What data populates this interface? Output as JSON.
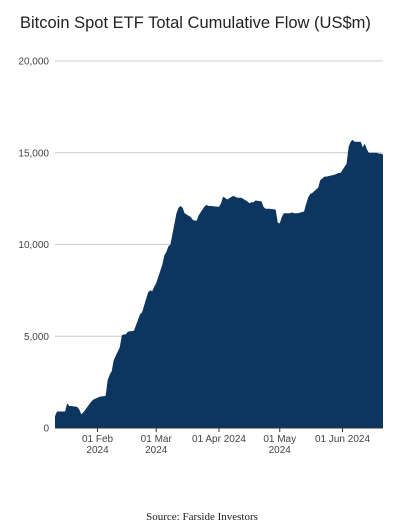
{
  "chart_title": "Bitcoin Spot ETF Total Cumulative Flow (US$m)",
  "source_note": "Source: Farside Investors",
  "colors": {
    "area": "#0c3560",
    "grid": "#cccccc",
    "axis": "#333333"
  },
  "chart_data": {
    "type": "area",
    "title": "Bitcoin Spot ETF Total Cumulative Flow (US$m)",
    "xlabel": "",
    "ylabel": "",
    "ylim": [
      0,
      20000
    ],
    "yticks": [
      "0",
      "5,000",
      "10,000",
      "15,000",
      "20,000"
    ],
    "yticks_values": [
      0,
      5000,
      10000,
      15000,
      20000
    ],
    "xticks": [
      {
        "date": "2024-02-01",
        "line1": "01 Feb",
        "line2": "2024"
      },
      {
        "date": "2024-03-01",
        "line1": "01 Mar",
        "line2": "2024"
      },
      {
        "date": "2024-04-01",
        "line1": "01 Apr 2024",
        "line2": ""
      },
      {
        "date": "2024-05-01",
        "line1": "01 May",
        "line2": "2024"
      },
      {
        "date": "2024-06-01",
        "line1": "01 Jun 2024",
        "line2": ""
      }
    ],
    "xlim": [
      "2024-01-11",
      "2024-06-21"
    ],
    "grid": true,
    "x": [
      "2024-01-11",
      "2024-01-12",
      "2024-01-15",
      "2024-01-16",
      "2024-01-17",
      "2024-01-18",
      "2024-01-19",
      "2024-01-22",
      "2024-01-23",
      "2024-01-24",
      "2024-01-25",
      "2024-01-26",
      "2024-01-29",
      "2024-01-30",
      "2024-01-31",
      "2024-02-01",
      "2024-02-02",
      "2024-02-05",
      "2024-02-06",
      "2024-02-07",
      "2024-02-08",
      "2024-02-09",
      "2024-02-12",
      "2024-02-13",
      "2024-02-14",
      "2024-02-15",
      "2024-02-16",
      "2024-02-19",
      "2024-02-20",
      "2024-02-21",
      "2024-02-22",
      "2024-02-23",
      "2024-02-26",
      "2024-02-27",
      "2024-02-28",
      "2024-02-29",
      "2024-03-01",
      "2024-03-04",
      "2024-03-05",
      "2024-03-06",
      "2024-03-07",
      "2024-03-08",
      "2024-03-11",
      "2024-03-12",
      "2024-03-13",
      "2024-03-14",
      "2024-03-15",
      "2024-03-18",
      "2024-03-19",
      "2024-03-20",
      "2024-03-21",
      "2024-03-22",
      "2024-03-25",
      "2024-03-26",
      "2024-03-27",
      "2024-03-28",
      "2024-04-01",
      "2024-04-02",
      "2024-04-03",
      "2024-04-04",
      "2024-04-05",
      "2024-04-08",
      "2024-04-09",
      "2024-04-10",
      "2024-04-11",
      "2024-04-12",
      "2024-04-15",
      "2024-04-16",
      "2024-04-17",
      "2024-04-18",
      "2024-04-19",
      "2024-04-22",
      "2024-04-23",
      "2024-04-24",
      "2024-04-25",
      "2024-04-26",
      "2024-04-29",
      "2024-04-30",
      "2024-05-01",
      "2024-05-02",
      "2024-05-03",
      "2024-05-06",
      "2024-05-07",
      "2024-05-08",
      "2024-05-09",
      "2024-05-10",
      "2024-05-13",
      "2024-05-14",
      "2024-05-15",
      "2024-05-16",
      "2024-05-17",
      "2024-05-20",
      "2024-05-21",
      "2024-05-22",
      "2024-05-23",
      "2024-05-24",
      "2024-05-28",
      "2024-05-29",
      "2024-05-30",
      "2024-05-31",
      "2024-06-03",
      "2024-06-04",
      "2024-06-05",
      "2024-06-06",
      "2024-06-07",
      "2024-06-10",
      "2024-06-11",
      "2024-06-12",
      "2024-06-13",
      "2024-06-14",
      "2024-06-17",
      "2024-06-18",
      "2024-06-19",
      "2024-06-20",
      "2024-06-21"
    ],
    "series": [
      {
        "values": [
          650,
          900,
          900,
          900,
          1350,
          1200,
          1200,
          1150,
          1000,
          750,
          850,
          1000,
          1450,
          1550,
          1600,
          1650,
          1700,
          1750,
          2600,
          2900,
          3100,
          3700,
          4400,
          5050,
          5100,
          5100,
          5250,
          5300,
          5600,
          5900,
          6200,
          6300,
          7400,
          7500,
          7450,
          7700,
          7900,
          8900,
          9400,
          9600,
          9900,
          10000,
          11700,
          12000,
          12100,
          12000,
          11700,
          11500,
          11350,
          11300,
          11300,
          11600,
          12100,
          12150,
          12100,
          12100,
          12050,
          12250,
          12600,
          12550,
          12450,
          12650,
          12600,
          12550,
          12550,
          12550,
          12350,
          12250,
          12300,
          12300,
          12400,
          12350,
          12050,
          11950,
          11950,
          11950,
          11900,
          11200,
          11150,
          11500,
          11700,
          11700,
          11750,
          11700,
          11700,
          11700,
          11800,
          12200,
          12550,
          12750,
          12800,
          13100,
          13500,
          13600,
          13700,
          13700,
          13800,
          13850,
          13900,
          13900,
          14400,
          15300,
          15600,
          15700,
          15600,
          15600,
          15300,
          15500,
          15200,
          15000,
          15000,
          15000,
          14950,
          14950,
          14900
        ]
      }
    ]
  }
}
